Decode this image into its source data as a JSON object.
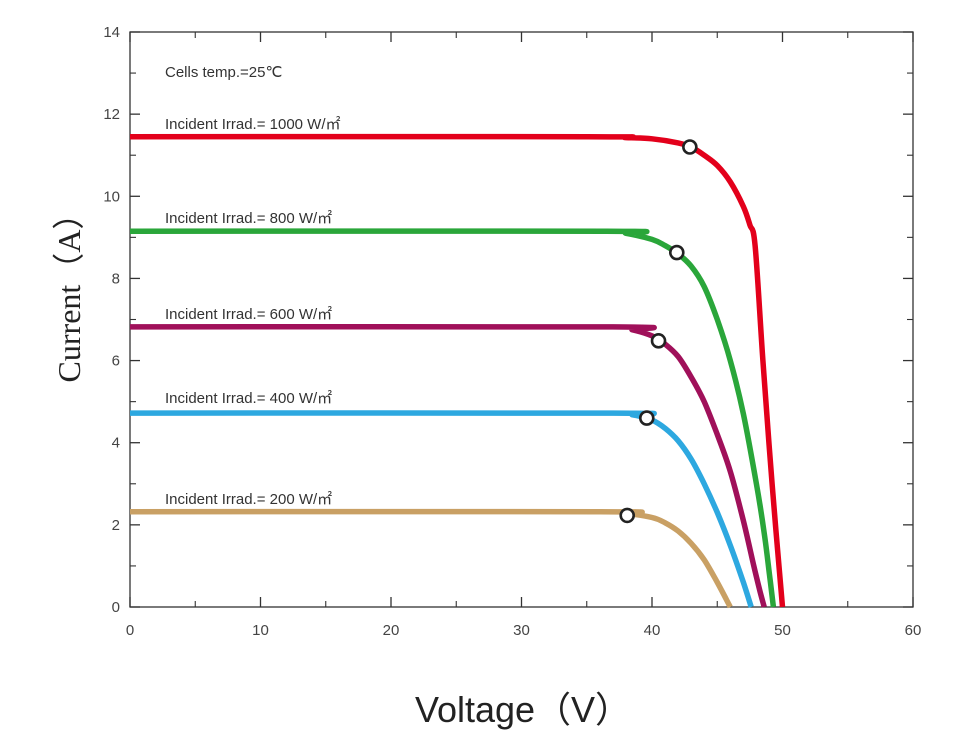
{
  "chart_data": {
    "type": "line",
    "title": "",
    "xlabel": "Voltage（V）",
    "ylabel": "Current（A）",
    "xlim": [
      0,
      60
    ],
    "ylim": [
      0,
      14
    ],
    "xticks": [
      0,
      10,
      20,
      30,
      40,
      50,
      60
    ],
    "yticks": [
      0,
      2,
      4,
      6,
      8,
      10,
      12,
      14
    ],
    "grid": false,
    "legend": "none",
    "annotations": [
      "Cells temp.=25℃",
      "Incident Irrad.= 1000 W/㎡",
      "Incident Irrad.= 800 W/㎡",
      "Incident Irrad.= 600 W/㎡",
      "Incident Irrad.= 400 W/㎡",
      "Incident Irrad.= 200 W/㎡"
    ],
    "series": [
      {
        "color": "#e3001b",
        "x": [
          0,
          35,
          38,
          40,
          42,
          43,
          44,
          45,
          46,
          47,
          47.5,
          47.9,
          48.5,
          49.2,
          50.0
        ],
        "y": [
          11.45,
          11.45,
          11.43,
          11.4,
          11.3,
          11.2,
          11.0,
          10.75,
          10.35,
          9.75,
          9.3,
          8.8,
          6.0,
          3.0,
          0
        ],
        "mpp": {
          "x": 42.9,
          "y": 11.2
        }
      },
      {
        "color": "#2aa63a",
        "x": [
          0,
          36.5,
          38,
          40,
          41,
          42,
          43,
          44,
          45,
          46,
          47,
          48,
          48.6,
          49.0,
          49.3
        ],
        "y": [
          9.15,
          9.15,
          9.1,
          8.95,
          8.8,
          8.6,
          8.3,
          7.8,
          7.0,
          6.0,
          4.7,
          3.0,
          1.8,
          0.8,
          0
        ],
        "mpp": {
          "x": 41.9,
          "y": 8.63
        }
      },
      {
        "color": "#a0105a",
        "x": [
          0,
          37,
          38.5,
          40,
          41,
          42,
          43,
          44,
          45,
          46,
          47,
          47.8,
          48.3,
          48.6
        ],
        "y": [
          6.82,
          6.82,
          6.75,
          6.6,
          6.4,
          6.1,
          5.6,
          5.0,
          4.2,
          3.3,
          2.1,
          1.0,
          0.35,
          0
        ],
        "mpp": {
          "x": 40.5,
          "y": 6.48
        }
      },
      {
        "color": "#2da8e0",
        "x": [
          0,
          37,
          38.5,
          40,
          41,
          42,
          43,
          44,
          45,
          46,
          47,
          47.6
        ],
        "y": [
          4.72,
          4.72,
          4.68,
          4.55,
          4.35,
          4.05,
          3.6,
          3.0,
          2.3,
          1.5,
          0.6,
          0
        ],
        "mpp": {
          "x": 39.6,
          "y": 4.6
        }
      },
      {
        "color": "#c9a064",
        "x": [
          0,
          36,
          38,
          40,
          41,
          42,
          43,
          44,
          45,
          46.0
        ],
        "y": [
          2.32,
          2.32,
          2.28,
          2.18,
          2.05,
          1.85,
          1.55,
          1.15,
          0.6,
          0
        ],
        "mpp": {
          "x": 38.1,
          "y": 2.23
        }
      }
    ]
  }
}
